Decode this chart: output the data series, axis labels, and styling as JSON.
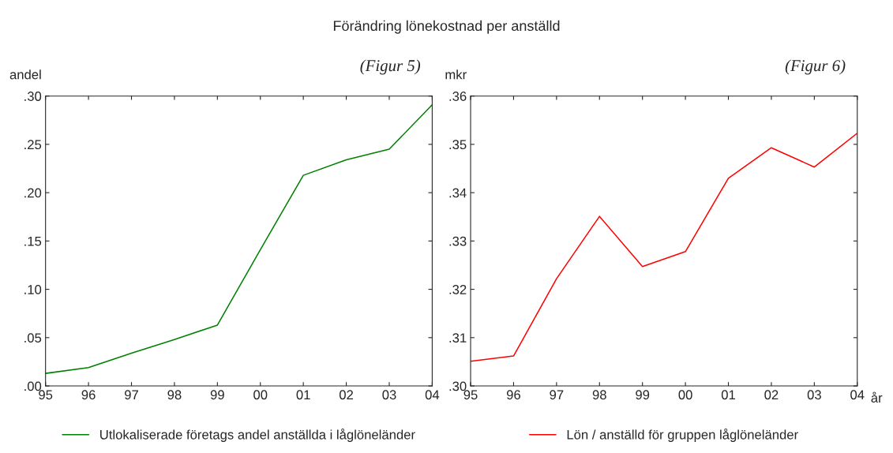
{
  "chart_data": [
    {
      "type": "line",
      "title": "Förändring lönekostnad per anställd",
      "ylabel": "andel",
      "annotations": [
        "(Figur 5)"
      ],
      "categories": [
        "95",
        "96",
        "97",
        "98",
        "99",
        "00",
        "01",
        "02",
        "03",
        "04"
      ],
      "series": [
        {
          "name": "Utlokaliserade företags andel anställda i låglöneländer",
          "color": "#008000",
          "values": [
            0.013,
            0.019,
            0.034,
            0.048,
            0.063,
            0.141,
            0.218,
            0.234,
            0.245,
            0.291
          ]
        }
      ],
      "ylim": [
        0,
        0.3
      ],
      "yticks": [
        {
          "value": 0,
          "label": ".00"
        },
        {
          "value": 0.05,
          "label": ".05"
        },
        {
          "value": 0.1,
          "label": ".10"
        },
        {
          "value": 0.15,
          "label": ".15"
        },
        {
          "value": 0.2,
          "label": ".20"
        },
        {
          "value": 0.25,
          "label": ".25"
        },
        {
          "value": 0.3,
          "label": ".30"
        }
      ],
      "grid": false,
      "legend": "bottom"
    },
    {
      "type": "line",
      "ylabel": "mkr",
      "xlabel": "år",
      "annotations": [
        "(Figur 6)"
      ],
      "categories": [
        "95",
        "96",
        "97",
        "98",
        "99",
        "00",
        "01",
        "02",
        "03",
        "04"
      ],
      "series": [
        {
          "name": "Lön / anställd för gruppen låglöneländer",
          "color": "#ff0000",
          "values": [
            0.3051,
            0.3062,
            0.3222,
            0.3351,
            0.3247,
            0.3278,
            0.343,
            0.3493,
            0.3453,
            0.3523
          ]
        }
      ],
      "ylim": [
        0.3,
        0.36
      ],
      "yticks": [
        {
          "value": 0.3,
          "label": ".30"
        },
        {
          "value": 0.31,
          "label": ".31"
        },
        {
          "value": 0.32,
          "label": ".32"
        },
        {
          "value": 0.33,
          "label": ".33"
        },
        {
          "value": 0.34,
          "label": ".34"
        },
        {
          "value": 0.35,
          "label": ".35"
        },
        {
          "value": 0.36,
          "label": ".36"
        }
      ],
      "grid": false,
      "legend": "bottom"
    }
  ]
}
